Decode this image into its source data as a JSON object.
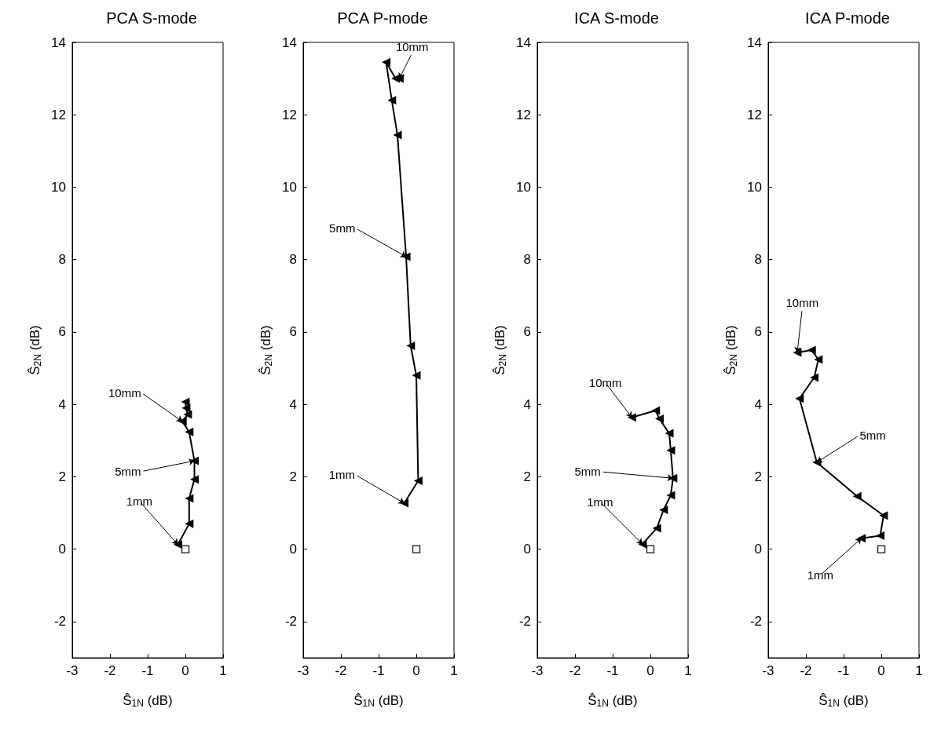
{
  "chart_data": [
    {
      "type": "line",
      "title": "PCA S-mode",
      "xlabel": "Ŝ$_{1N}$ (dB)",
      "ylabel": "Ŝ$_{2N}$ (dB)",
      "xlim": [
        -3,
        1
      ],
      "ylim": [
        -3,
        14
      ],
      "xticks": [
        -3,
        -2,
        -1,
        0,
        1
      ],
      "yticks": [
        -2,
        0,
        2,
        4,
        6,
        8,
        10,
        12,
        14
      ],
      "marker": "triangle",
      "series": [
        {
          "color": "#000000",
          "x": [
            -0.2,
            0.1,
            0.1,
            0.24,
            0.24,
            0.1,
            -0.08,
            0.06,
            0.02,
            0.0
          ],
          "values": [
            0.13,
            0.7,
            1.4,
            1.93,
            2.44,
            3.24,
            3.53,
            3.72,
            3.9,
            4.07
          ]
        },
        {
          "type": "scatter",
          "marker": "square",
          "color": "#000000",
          "x": [
            0
          ],
          "values": [
            0
          ]
        }
      ],
      "annotations": [
        {
          "text": "1mm",
          "x": -0.2,
          "y": 0.13
        },
        {
          "text": "5mm",
          "x": 0.24,
          "y": 2.44
        },
        {
          "text": "10mm",
          "x": -0.08,
          "y": 3.53
        }
      ]
    },
    {
      "type": "line",
      "title": "PCA P-mode",
      "xlabel": "Ŝ$_{1N}$ (dB)",
      "ylabel": "Ŝ$_{2N}$ (dB)",
      "xlim": [
        -3,
        1
      ],
      "ylim": [
        -3,
        14
      ],
      "xticks": [
        -3,
        -2,
        -1,
        0,
        1
      ],
      "yticks": [
        -2,
        0,
        2,
        4,
        6,
        8,
        10,
        12,
        14
      ],
      "marker": "triangle",
      "series": [
        {
          "color": "#000000",
          "x": [
            -0.32,
            0.05,
            0.0,
            -0.15,
            -0.27,
            -0.5,
            -0.65,
            -0.8,
            -0.55,
            -0.45
          ],
          "values": [
            1.27,
            1.89,
            4.8,
            5.62,
            8.08,
            11.44,
            12.4,
            13.45,
            13.0,
            13.0
          ]
        },
        {
          "type": "scatter",
          "marker": "square",
          "color": "#000000",
          "x": [
            0
          ],
          "values": [
            0
          ]
        }
      ],
      "annotations": [
        {
          "text": "1mm",
          "x": -0.32,
          "y": 1.27
        },
        {
          "text": "5mm",
          "x": -0.27,
          "y": 8.08
        },
        {
          "text": "10mm",
          "x": -0.45,
          "y": 13.0
        }
      ]
    },
    {
      "type": "line",
      "title": "ICA S-mode",
      "xlabel": "Ŝ$_{1N}$ (dB)",
      "ylabel": "Ŝ$_{2N}$ (dB)",
      "xlim": [
        -3,
        1
      ],
      "ylim": [
        -3,
        14
      ],
      "xticks": [
        -3,
        -2,
        -1,
        0,
        1
      ],
      "yticks": [
        -2,
        0,
        2,
        4,
        6,
        8,
        10,
        12,
        14
      ],
      "marker": "triangle",
      "series": [
        {
          "color": "#000000",
          "x": [
            -0.21,
            0.17,
            0.35,
            0.54,
            0.6,
            0.54,
            0.5,
            0.24,
            0.14,
            -0.49
          ],
          "values": [
            0.14,
            0.58,
            1.09,
            1.49,
            1.96,
            2.73,
            3.2,
            3.6,
            3.83,
            3.64
          ]
        },
        {
          "type": "scatter",
          "marker": "square",
          "color": "#000000",
          "x": [
            0
          ],
          "values": [
            0
          ]
        }
      ],
      "annotations": [
        {
          "text": "1mm",
          "x": -0.21,
          "y": 0.14
        },
        {
          "text": "5mm",
          "x": 0.6,
          "y": 1.96
        },
        {
          "text": "10mm",
          "x": -0.49,
          "y": 3.64
        }
      ]
    },
    {
      "type": "line",
      "title": "ICA P-mode",
      "xlabel": "Ŝ$_{1N}$ (dB)",
      "ylabel": "Ŝ$_{2N}$ (dB)",
      "xlim": [
        -3,
        1
      ],
      "ylim": [
        -3,
        14
      ],
      "xticks": [
        -3,
        -2,
        -1,
        0,
        1
      ],
      "yticks": [
        -2,
        0,
        2,
        4,
        6,
        8,
        10,
        12,
        14
      ],
      "marker": "triangle",
      "series": [
        {
          "color": "#000000",
          "x": [
            -0.53,
            -0.03,
            0.06,
            -0.64,
            -1.71,
            -2.17,
            -1.78,
            -1.67,
            -1.85,
            -2.23
          ],
          "values": [
            0.3,
            0.37,
            0.93,
            1.46,
            2.4,
            4.16,
            4.74,
            5.24,
            5.5,
            5.43
          ]
        },
        {
          "type": "scatter",
          "marker": "square",
          "color": "#000000",
          "x": [
            0
          ],
          "values": [
            0
          ]
        }
      ],
      "annotations": [
        {
          "text": "1mm",
          "x": -0.53,
          "y": 0.3
        },
        {
          "text": "5mm",
          "x": -1.71,
          "y": 2.4
        },
        {
          "text": "10mm",
          "x": -2.23,
          "y": 5.43
        }
      ]
    }
  ]
}
